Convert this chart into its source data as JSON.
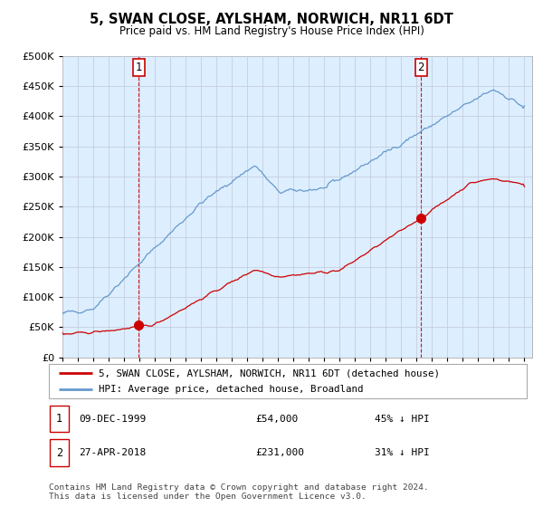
{
  "title": "5, SWAN CLOSE, AYLSHAM, NORWICH, NR11 6DT",
  "subtitle": "Price paid vs. HM Land Registry's House Price Index (HPI)",
  "sale1_date": "09-DEC-1999",
  "sale1_price": 54000,
  "sale1_label": "45% ↓ HPI",
  "sale2_date": "27-APR-2018",
  "sale2_price": 231000,
  "sale2_label": "31% ↓ HPI",
  "legend_line1": "5, SWAN CLOSE, AYLSHAM, NORWICH, NR11 6DT (detached house)",
  "legend_line2": "HPI: Average price, detached house, Broadland",
  "footer": "Contains HM Land Registry data © Crown copyright and database right 2024.\nThis data is licensed under the Open Government Licence v3.0.",
  "red_color": "#cc0000",
  "blue_color": "#6699cc",
  "bg_color": "#ddeeff",
  "ylim": [
    0,
    500000
  ],
  "yticks": [
    0,
    50000,
    100000,
    150000,
    200000,
    250000,
    300000,
    350000,
    400000,
    450000,
    500000
  ]
}
